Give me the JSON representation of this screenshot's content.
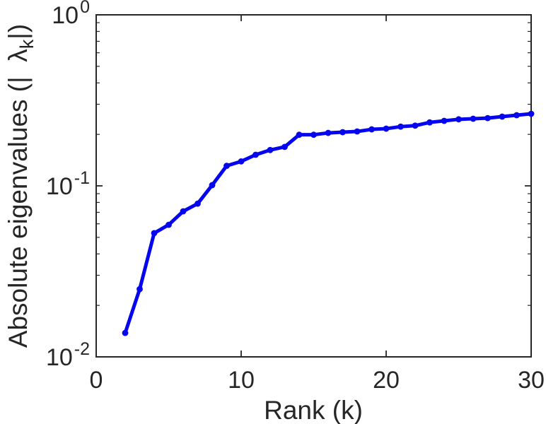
{
  "figure": {
    "background_color": "#ffffff",
    "axis_color": "#262626",
    "text_color": "#262626"
  },
  "chart_data": {
    "type": "line",
    "title": "",
    "xlabel": "Rank (k)",
    "ylabel": {
      "prefix": "Absolute eigenvalues (|  ",
      "lambda": "λ",
      "subscript": "k",
      "suffix": "|)"
    },
    "series": [
      {
        "name": "absolute-eigenvalues",
        "color": "#0505ee",
        "marker": "circle",
        "x": [
          2,
          3,
          4,
          5,
          6,
          7,
          8,
          9,
          10,
          11,
          12,
          13,
          14,
          15,
          16,
          17,
          18,
          19,
          20,
          21,
          22,
          23,
          24,
          25,
          26,
          27,
          28,
          29,
          30
        ],
        "y": [
          0.0138,
          0.0249,
          0.0529,
          0.0592,
          0.071,
          0.0787,
          0.101,
          0.131,
          0.139,
          0.152,
          0.162,
          0.169,
          0.199,
          0.199,
          0.204,
          0.206,
          0.208,
          0.214,
          0.216,
          0.222,
          0.225,
          0.235,
          0.24,
          0.245,
          0.247,
          0.249,
          0.254,
          0.259,
          0.264
        ]
      }
    ],
    "xlim": [
      0,
      30
    ],
    "ylim": [
      0.01,
      1
    ],
    "ylim_log10": [
      -2,
      0
    ],
    "y_scale": "log",
    "grid": false,
    "legend_position": "none",
    "xticks": [
      {
        "value": 0,
        "label": "0"
      },
      {
        "value": 10,
        "label": "10"
      },
      {
        "value": 20,
        "label": "20"
      },
      {
        "value": 30,
        "label": "30"
      }
    ],
    "yticks": [
      {
        "value": 1,
        "mantissa": "10",
        "exponent": "0"
      },
      {
        "value": 0.1,
        "mantissa": "10",
        "exponent": "-1"
      },
      {
        "value": 0.01,
        "mantissa": "10",
        "exponent": "-2"
      }
    ]
  }
}
